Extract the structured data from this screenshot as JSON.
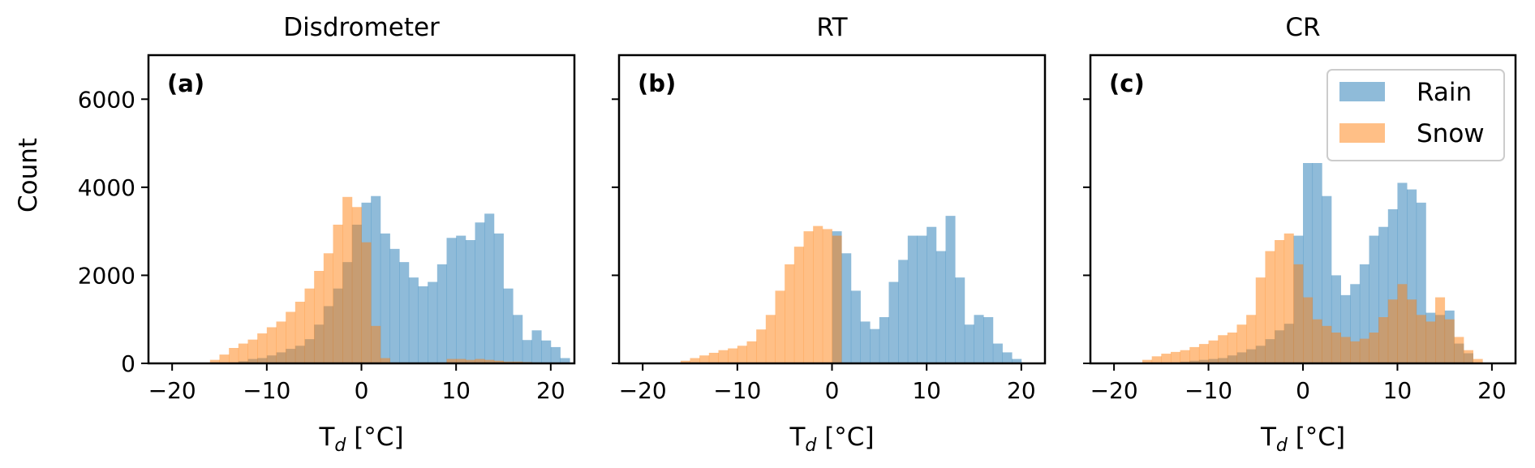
{
  "figure": {
    "ylabel": "Count",
    "xlabel_base": "T",
    "xlabel_sub": "d",
    "xlabel_unit": " [°C]",
    "legend": {
      "rain": "Rain",
      "snow": "Snow"
    },
    "colors": {
      "rain": "#1f77b4",
      "snow": "#ff7f0e",
      "alpha": 0.5
    }
  },
  "chart_data": [
    {
      "type": "histogram",
      "title": "Disdrometer",
      "panel_label": "(a)",
      "xlim": [
        -22.5,
        22.5
      ],
      "ylim": [
        0,
        7000
      ],
      "xticks": [
        -20,
        -10,
        0,
        10,
        20
      ],
      "yticks": [
        0,
        2000,
        4000,
        6000
      ],
      "bin_width": 1,
      "series": [
        {
          "name": "Rain",
          "x_start": -16,
          "counts": [
            0,
            0,
            20,
            50,
            100,
            120,
            180,
            250,
            330,
            400,
            550,
            880,
            1300,
            1700,
            2300,
            3150,
            3650,
            3800,
            2950,
            2600,
            2300,
            1950,
            1750,
            1850,
            2250,
            2850,
            2900,
            2800,
            3200,
            3400,
            2950,
            1700,
            1100,
            530,
            750,
            520,
            370,
            120,
            0,
            0
          ]
        },
        {
          "name": "Snow",
          "x_start": -16,
          "counts": [
            80,
            200,
            350,
            450,
            540,
            680,
            820,
            950,
            1170,
            1400,
            1700,
            2100,
            2500,
            3150,
            3780,
            3550,
            2750,
            850,
            120,
            0,
            0,
            0,
            0,
            0,
            0,
            100,
            100,
            80,
            100,
            80,
            60,
            40,
            40,
            30,
            20,
            10,
            0,
            0,
            0,
            0
          ]
        }
      ]
    },
    {
      "type": "histogram",
      "title": "RT",
      "panel_label": "(b)",
      "xlim": [
        -22.5,
        22.5
      ],
      "ylim": [
        0,
        7000
      ],
      "xticks": [
        -20,
        -10,
        0,
        10,
        20
      ],
      "yticks": [
        0,
        2000,
        4000,
        6000
      ],
      "bin_width": 1,
      "series": [
        {
          "name": "Rain",
          "x_start": 0,
          "counts": [
            3000,
            2500,
            1650,
            950,
            780,
            1050,
            1850,
            2350,
            2900,
            2900,
            3100,
            2550,
            3350,
            1950,
            880,
            1100,
            1050,
            450,
            250,
            100
          ]
        },
        {
          "name": "Snow",
          "x_start": -16,
          "counts": [
            60,
            120,
            180,
            240,
            300,
            340,
            400,
            500,
            770,
            1100,
            1650,
            2250,
            2650,
            3000,
            3120,
            3050,
            2900,
            0,
            0,
            0,
            0,
            0,
            0,
            0,
            0,
            0,
            0,
            0,
            0,
            0,
            0,
            0,
            0,
            0,
            0,
            0
          ]
        }
      ]
    },
    {
      "type": "histogram",
      "title": "CR",
      "panel_label": "(c)",
      "xlim": [
        -22.5,
        22.5
      ],
      "ylim": [
        0,
        7000
      ],
      "xticks": [
        -20,
        -10,
        0,
        10,
        20
      ],
      "yticks": [
        0,
        2000,
        4000,
        6000
      ],
      "bin_width": 1,
      "series": [
        {
          "name": "Rain",
          "x_start": -17,
          "counts": [
            0,
            0,
            0,
            20,
            40,
            60,
            80,
            100,
            120,
            180,
            250,
            320,
            400,
            550,
            750,
            900,
            2900,
            4550,
            4550,
            3800,
            2000,
            1550,
            1800,
            2250,
            2900,
            3100,
            3500,
            4100,
            3950,
            3650,
            1150,
            1100,
            1200,
            450,
            230,
            0
          ]
        },
        {
          "name": "Snow",
          "x_start": -17,
          "counts": [
            80,
            160,
            220,
            260,
            300,
            370,
            440,
            520,
            640,
            700,
            880,
            1100,
            1950,
            2550,
            2800,
            2950,
            2250,
            1500,
            1000,
            850,
            700,
            600,
            500,
            560,
            700,
            1050,
            1450,
            1800,
            1450,
            1100,
            950,
            1500,
            1000,
            600,
            300,
            100
          ]
        }
      ]
    }
  ]
}
